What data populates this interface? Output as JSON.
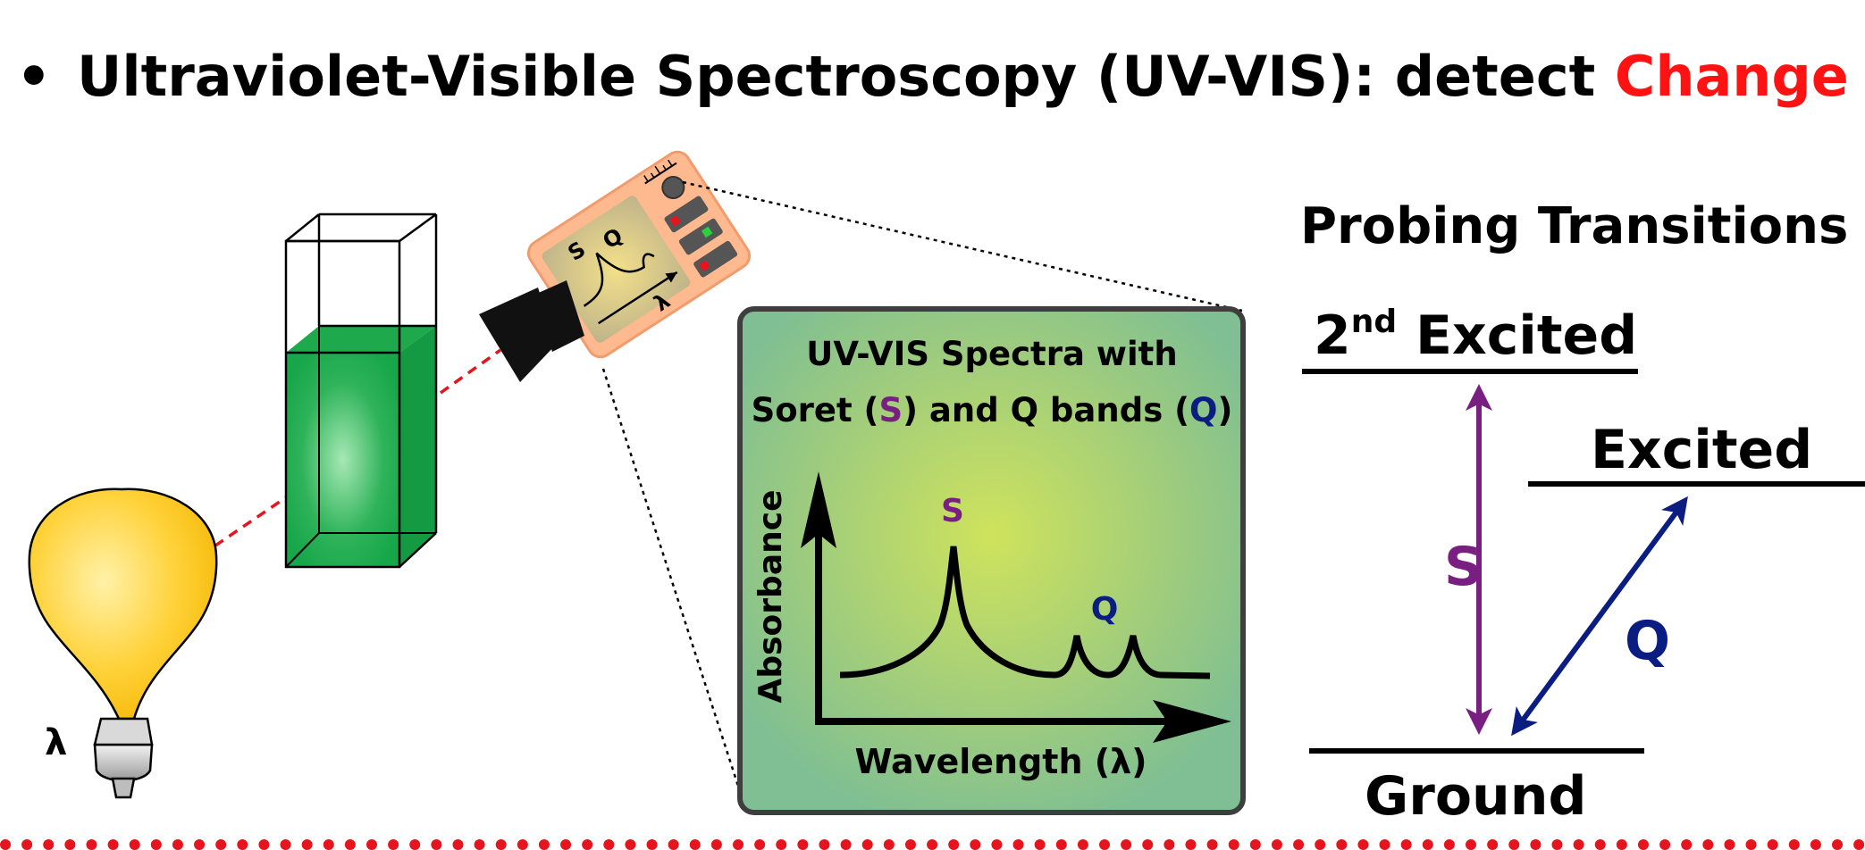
{
  "heading": {
    "bullet": "•",
    "lead": "Ultraviolet-Visible Spectroscopy (UV-VIS): detect ",
    "accent_word": "Change",
    "accent_color": "#ff1212"
  },
  "source": {
    "label": "λ"
  },
  "detector_screen": {
    "s_label": "S",
    "q_label": "Q",
    "axis_symbol": "λ"
  },
  "spectrum_panel": {
    "title_line1": "UV-VIS Spectra with",
    "title_line2_prefix": "Soret (",
    "title_line2_s": "S",
    "title_line2_mid": ") and Q bands (",
    "title_line2_q": "Q",
    "title_line2_suffix": ")",
    "y_axis_label": "Absorbance",
    "x_axis_label": "Wavelength (λ)",
    "peak_s_label": "S",
    "peak_q_label": "Q"
  },
  "transitions": {
    "title": "Probing Transitions",
    "level_second_excited_base": "2",
    "level_second_excited_sup": "nd",
    "level_second_excited_word": " Excited",
    "level_excited": "Excited",
    "level_ground": "Ground",
    "arrow_s_label": "S",
    "arrow_q_label": "Q"
  },
  "colors": {
    "soret": "#7a1f82",
    "q_band": "#0b1d80",
    "solution": "#17a64a",
    "bulb": "#ffd23a",
    "detector": "#ffb98f",
    "panel": "#7fbf93",
    "beam": "#e5141d"
  }
}
